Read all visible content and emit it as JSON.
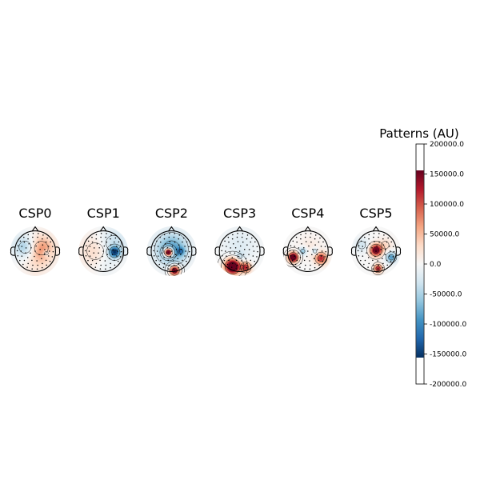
{
  "chart_data": {
    "type": "heatmap",
    "kind": "topographic-maps",
    "cmap": "RdBu_r",
    "panels": [
      {
        "title": "CSP0",
        "blobs": [
          {
            "u": 0.3,
            "v": 0.15,
            "s": 0.45,
            "a": 70000
          },
          {
            "u": -0.5,
            "v": 0.2,
            "s": 0.4,
            "a": -60000
          },
          {
            "u": 0.05,
            "v": -0.6,
            "s": 0.5,
            "a": 20000
          },
          {
            "u": 0.55,
            "v": -0.1,
            "s": 0.12,
            "a": -40000
          }
        ]
      },
      {
        "title": "CSP1",
        "blobs": [
          {
            "u": 0.55,
            "v": -0.05,
            "s": 0.18,
            "a": -140000
          },
          {
            "u": 0.5,
            "v": 0.4,
            "s": 0.5,
            "a": -40000
          },
          {
            "u": -0.4,
            "v": 0.0,
            "s": 0.55,
            "a": 30000
          },
          {
            "u": 0.1,
            "v": -0.65,
            "s": 0.35,
            "a": -15000
          }
        ]
      },
      {
        "title": "CSP2",
        "blobs": [
          {
            "u": -0.15,
            "v": -0.05,
            "s": 0.14,
            "a": 260000
          },
          {
            "u": 0.15,
            "v": -0.95,
            "s": 0.16,
            "a": 180000
          },
          {
            "u": 0.0,
            "v": 0.1,
            "s": 0.55,
            "a": -90000
          },
          {
            "u": 0.45,
            "v": 0.0,
            "s": 0.15,
            "a": -60000
          }
        ]
      },
      {
        "title": "CSP3",
        "blobs": [
          {
            "u": -0.35,
            "v": -0.75,
            "s": 0.25,
            "a": 230000
          },
          {
            "u": 0.3,
            "v": -0.8,
            "s": 0.18,
            "a": 120000
          },
          {
            "u": 0.0,
            "v": -0.25,
            "s": 0.16,
            "a": -30000
          },
          {
            "u": 0.0,
            "v": 0.3,
            "s": 0.6,
            "a": -20000
          }
        ]
      },
      {
        "title": "CSP4",
        "blobs": [
          {
            "u": -0.72,
            "v": -0.3,
            "s": 0.16,
            "a": 210000
          },
          {
            "u": 0.65,
            "v": -0.35,
            "s": 0.2,
            "a": 120000
          },
          {
            "u": -0.25,
            "v": 0.0,
            "s": 0.14,
            "a": -70000
          },
          {
            "u": 0.35,
            "v": 0.0,
            "s": 0.12,
            "a": -50000
          },
          {
            "u": 0.1,
            "v": 0.2,
            "s": 0.4,
            "a": 15000
          }
        ]
      },
      {
        "title": "CSP5",
        "blobs": [
          {
            "u": 0.0,
            "v": 0.05,
            "s": 0.2,
            "a": 170000
          },
          {
            "u": 0.1,
            "v": -0.85,
            "s": 0.14,
            "a": 130000
          },
          {
            "u": 0.75,
            "v": -0.3,
            "s": 0.18,
            "a": -90000
          },
          {
            "u": -0.7,
            "v": 0.3,
            "s": 0.25,
            "a": -30000
          },
          {
            "u": 0.45,
            "v": 0.3,
            "s": 0.25,
            "a": 30000
          }
        ]
      }
    ],
    "colorbar": {
      "title": "Patterns (AU)",
      "vmin": -200000,
      "vmax": 200000,
      "cmap_range": [
        -156000,
        156000
      ],
      "ticks": [
        {
          "value": 200000,
          "label": "200000.0"
        },
        {
          "value": 150000,
          "label": "150000.0"
        },
        {
          "value": 100000,
          "label": "100000.0"
        },
        {
          "value": 50000,
          "label": "50000.0"
        },
        {
          "value": 0,
          "label": "0.0"
        },
        {
          "value": -50000,
          "label": "-50000.0"
        },
        {
          "value": -100000,
          "label": "-100000.0"
        },
        {
          "value": -150000,
          "label": "-150000.0"
        },
        {
          "value": -200000,
          "label": "-200000.0"
        }
      ]
    }
  }
}
